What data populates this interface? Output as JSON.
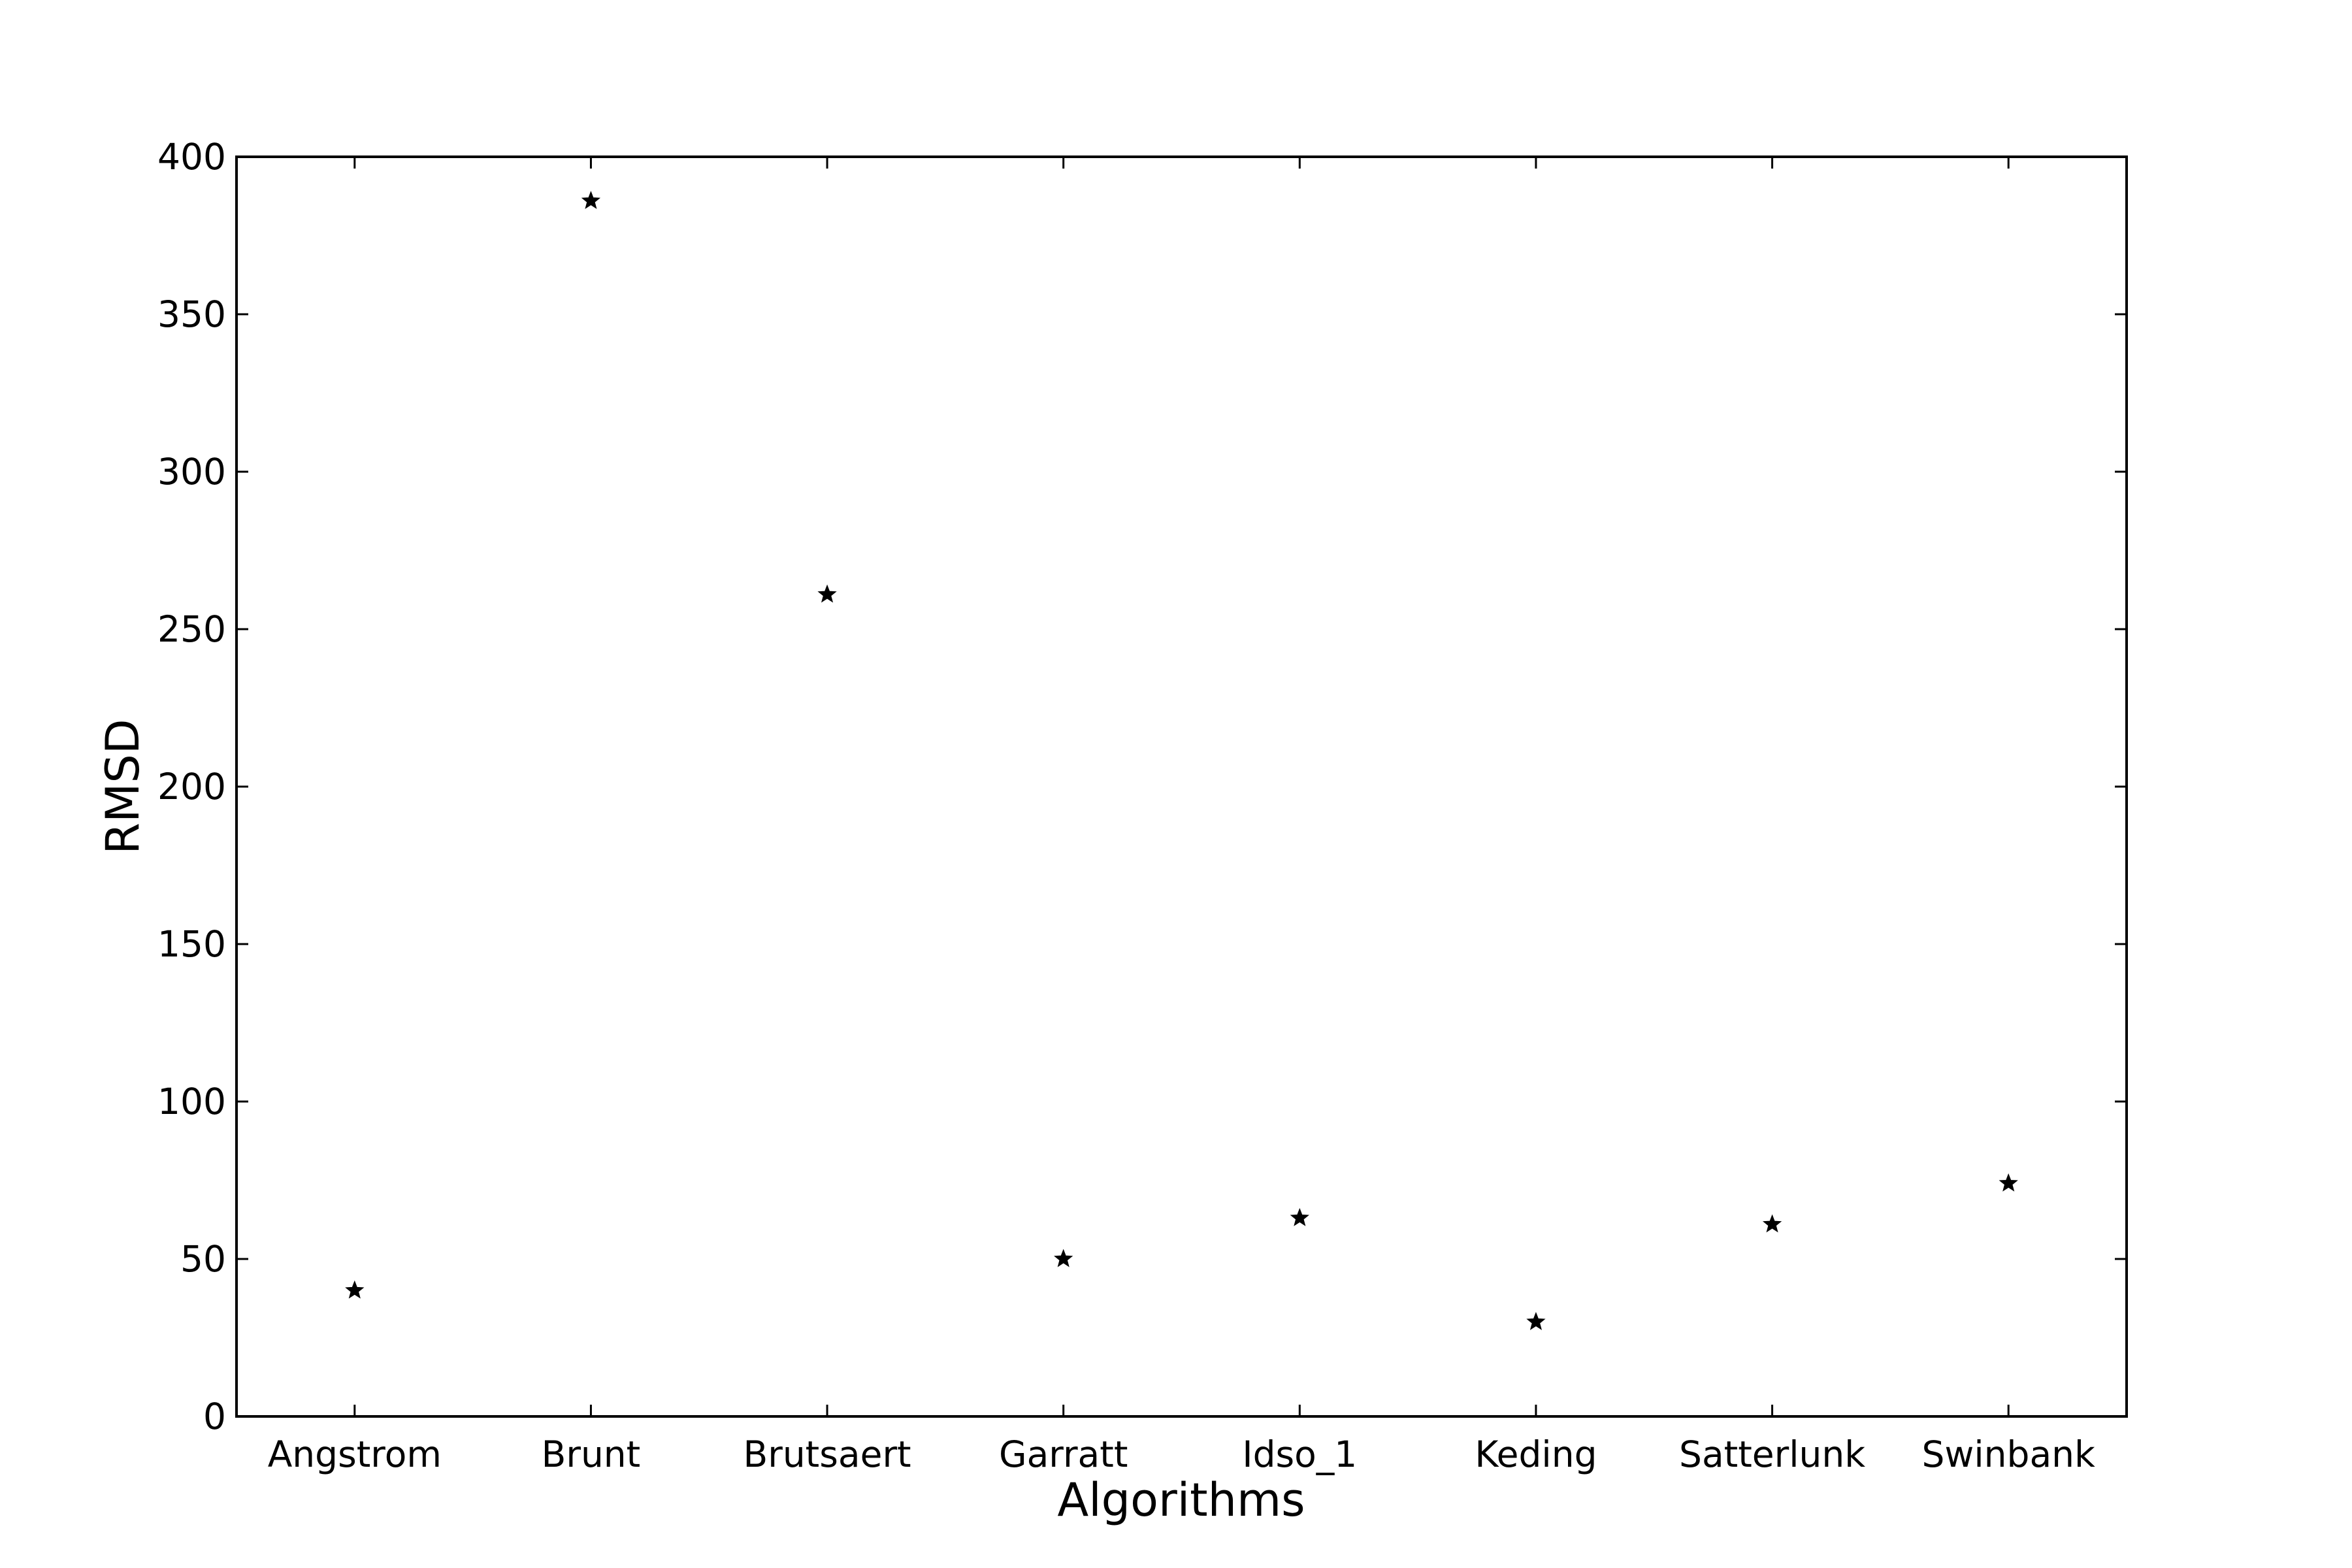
{
  "chart_data": {
    "type": "scatter",
    "xlabel": "Algorithms",
    "ylabel": "RMSD",
    "categories": [
      "Angstrom",
      "Brunt",
      "Brutsaert",
      "Garratt",
      "Idso_1",
      "Keding",
      "Satterlunk",
      "Swinbank"
    ],
    "values": [
      40,
      386,
      261,
      50,
      63,
      30,
      61,
      74
    ],
    "ylim": [
      0,
      400
    ],
    "yticks": [
      0,
      50,
      100,
      150,
      200,
      250,
      300,
      350,
      400
    ],
    "marker": "star",
    "marker_color": "#000000",
    "grid": false,
    "legend": "none"
  }
}
